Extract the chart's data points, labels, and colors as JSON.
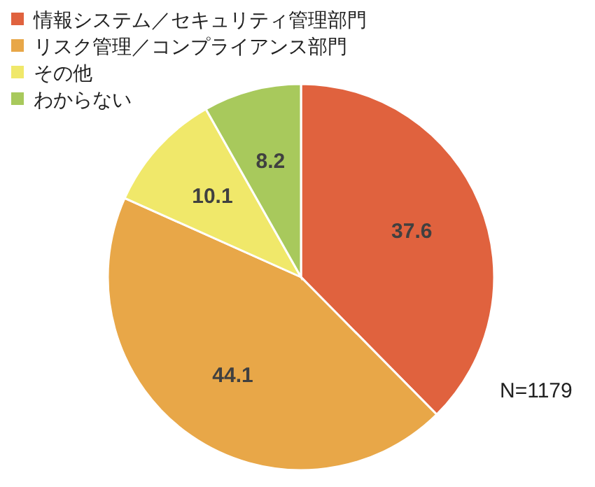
{
  "chart_data": {
    "type": "pie",
    "categories": [
      "情報システム／セキュリティ管理部門",
      "リスク管理／コンプライアンス部門",
      "その他",
      "わからない"
    ],
    "values": [
      37.6,
      44.1,
      10.1,
      8.2
    ],
    "colors": [
      "#e0623e",
      "#e8a748",
      "#f0e86a",
      "#a8c95c"
    ],
    "data_labels": true,
    "legend": "top left",
    "annotations": [
      "N=1179"
    ]
  }
}
